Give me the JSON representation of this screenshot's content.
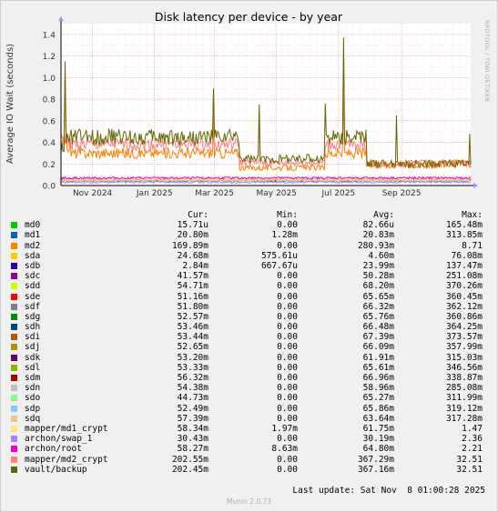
{
  "chart_data": {
    "type": "line",
    "title": "Disk latency per device - by year",
    "ylabel": "Average IO Wait (seconds)",
    "ylim": [
      0,
      1.5
    ],
    "y_ticks": [
      0.0,
      0.2,
      0.4,
      0.6,
      0.8,
      1.0,
      1.2,
      1.4
    ],
    "y_tick_labels": [
      "0.0",
      "0.2",
      "0.4",
      "0.6",
      "0.8",
      "1.0",
      "1.2",
      "1.4"
    ],
    "x_range": [
      "2024-10-01",
      "2025-11-08"
    ],
    "x_ticks": [
      {
        "date": "2024-11-01",
        "label": "Nov 2024"
      },
      {
        "date": "2025-01-01",
        "label": "Jan 2025"
      },
      {
        "date": "2025-03-01",
        "label": "Mar 2025"
      },
      {
        "date": "2025-05-01",
        "label": "May 2025"
      },
      {
        "date": "2025-07-01",
        "label": "Jul 2025"
      },
      {
        "date": "2025-09-01",
        "label": "Sep 2025"
      }
    ],
    "grid": true,
    "column_headers": [
      "Cur:",
      "Min:",
      "Avg:",
      "Max:"
    ],
    "series": [
      {
        "name": "md0",
        "color": "#00cc00",
        "cur": "15.71u",
        "min": "0.00",
        "avg": "82.66u",
        "max": "165.48m"
      },
      {
        "name": "md1",
        "color": "#0066b3",
        "cur": "20.80m",
        "min": "1.28m",
        "avg": "20.83m",
        "max": "313.85m"
      },
      {
        "name": "md2",
        "color": "#ff8000",
        "cur": "169.89m",
        "min": "0.00",
        "avg": "280.93m",
        "max": "8.71"
      },
      {
        "name": "sda",
        "color": "#ffcc00",
        "cur": "24.68m",
        "min": "575.61u",
        "avg": "4.60m",
        "max": "76.08m"
      },
      {
        "name": "sdb",
        "color": "#330099",
        "cur": "2.84m",
        "min": "667.67u",
        "avg": "23.99m",
        "max": "137.47m"
      },
      {
        "name": "sdc",
        "color": "#990099",
        "cur": "41.57m",
        "min": "0.00",
        "avg": "50.28m",
        "max": "251.08m"
      },
      {
        "name": "sdd",
        "color": "#ccff00",
        "cur": "54.71m",
        "min": "0.00",
        "avg": "68.20m",
        "max": "370.26m"
      },
      {
        "name": "sde",
        "color": "#ff0000",
        "cur": "51.16m",
        "min": "0.00",
        "avg": "65.65m",
        "max": "360.45m"
      },
      {
        "name": "sdf",
        "color": "#808080",
        "cur": "51.80m",
        "min": "0.00",
        "avg": "66.32m",
        "max": "362.12m"
      },
      {
        "name": "sdg",
        "color": "#008f00",
        "cur": "52.57m",
        "min": "0.00",
        "avg": "65.76m",
        "max": "360.86m"
      },
      {
        "name": "sdh",
        "color": "#00487d",
        "cur": "53.46m",
        "min": "0.00",
        "avg": "66.48m",
        "max": "364.25m"
      },
      {
        "name": "sdi",
        "color": "#b35a00",
        "cur": "53.44m",
        "min": "0.00",
        "avg": "67.39m",
        "max": "373.57m"
      },
      {
        "name": "sdj",
        "color": "#b38f00",
        "cur": "52.65m",
        "min": "0.00",
        "avg": "66.09m",
        "max": "357.99m"
      },
      {
        "name": "sdk",
        "color": "#6b006b",
        "cur": "53.20m",
        "min": "0.00",
        "avg": "61.91m",
        "max": "315.03m"
      },
      {
        "name": "sdl",
        "color": "#8fb300",
        "cur": "53.33m",
        "min": "0.00",
        "avg": "65.61m",
        "max": "346.56m"
      },
      {
        "name": "sdm",
        "color": "#b30000",
        "cur": "56.32m",
        "min": "0.00",
        "avg": "66.96m",
        "max": "338.87m"
      },
      {
        "name": "sdn",
        "color": "#bebebe",
        "cur": "54.38m",
        "min": "0.00",
        "avg": "58.96m",
        "max": "285.08m"
      },
      {
        "name": "sdo",
        "color": "#80ff80",
        "cur": "44.73m",
        "min": "0.00",
        "avg": "65.27m",
        "max": "311.99m"
      },
      {
        "name": "sdp",
        "color": "#80c9ff",
        "cur": "52.49m",
        "min": "0.00",
        "avg": "65.86m",
        "max": "319.12m"
      },
      {
        "name": "sdq",
        "color": "#ffc080",
        "cur": "57.39m",
        "min": "0.00",
        "avg": "63.64m",
        "max": "317.28m"
      },
      {
        "name": "mapper/md1_crypt",
        "color": "#ffe680",
        "cur": "58.34m",
        "min": "1.97m",
        "avg": "61.75m",
        "max": "1.47"
      },
      {
        "name": "archon/swap_1",
        "color": "#aa80ff",
        "cur": "30.43m",
        "min": "0.00",
        "avg": "30.19m",
        "max": "2.36"
      },
      {
        "name": "archon/root",
        "color": "#ee00cc",
        "cur": "58.27m",
        "min": "8.63m",
        "avg": "64.80m",
        "max": "2.21"
      },
      {
        "name": "mapper/md2_crypt",
        "color": "#ff8080",
        "cur": "202.55m",
        "min": "0.00",
        "avg": "367.29m",
        "max": "32.51"
      },
      {
        "name": "vault/backup",
        "color": "#666600",
        "cur": "202.45m",
        "min": "0.00",
        "avg": "367.16m",
        "max": "32.51"
      }
    ]
  },
  "last_update": "Last update: Sat Nov  8 01:00:28 2025",
  "footer": "Munin 2.0.73",
  "watermark": "RRDTOOL / TOBI OETIKER"
}
